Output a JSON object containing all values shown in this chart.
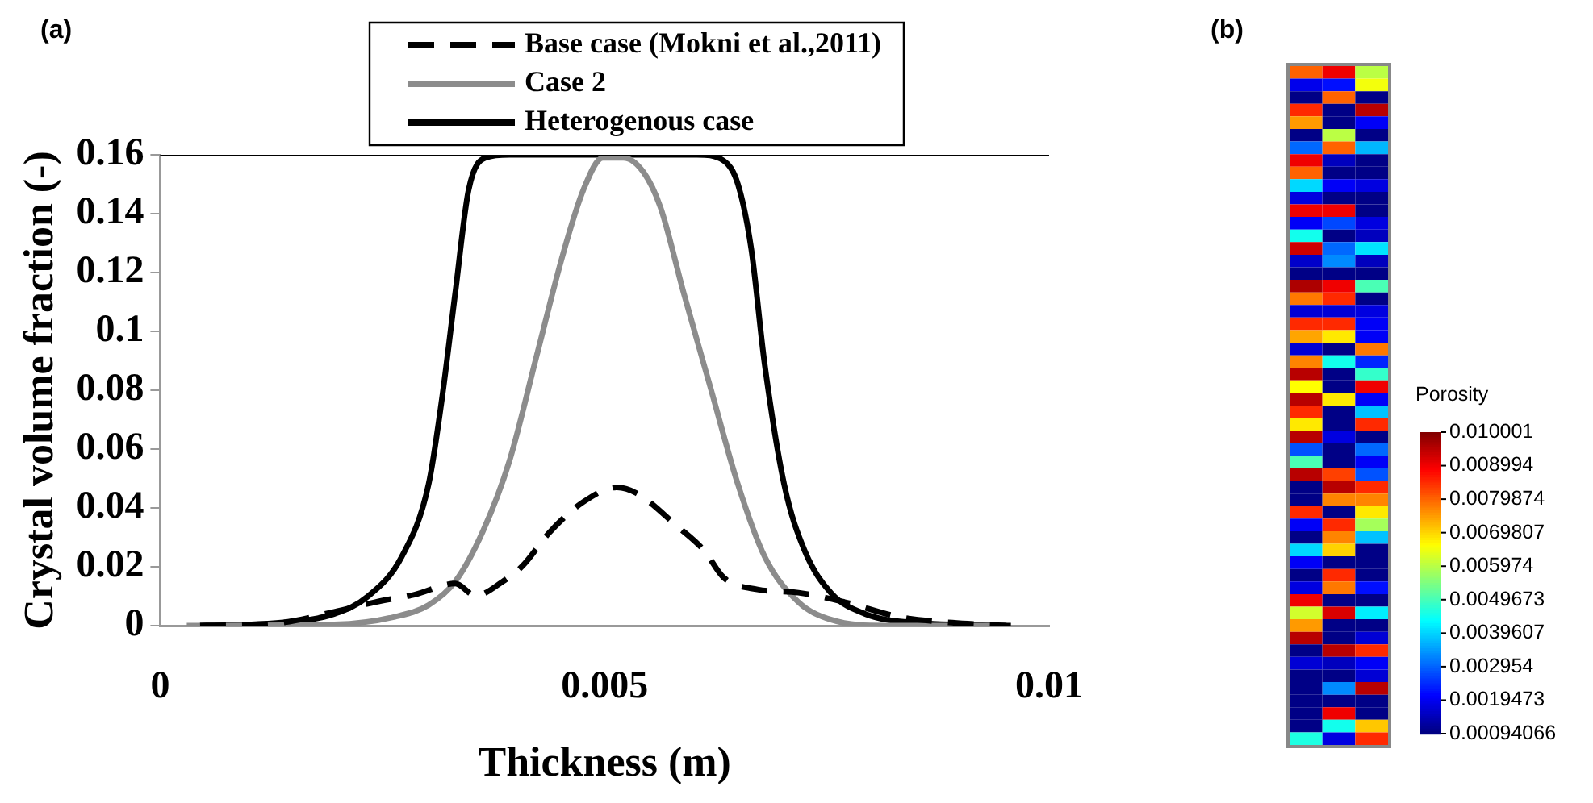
{
  "chart_data": [
    {
      "type": "line",
      "title": "(a)",
      "xlabel": "Thickness (m)",
      "ylabel": "Crystal volume fraction (-)",
      "xlim": [
        0,
        0.01
      ],
      "xticks": [
        0,
        0.005,
        0.01
      ],
      "ylim": [
        0,
        0.16
      ],
      "yticks": [
        0,
        0.02,
        0.04,
        0.06,
        0.08,
        0.1,
        0.12,
        0.14,
        0.16
      ],
      "grid": false,
      "legend": "top",
      "marker": "none",
      "series": [
        {
          "name": "Base case (Mokni et al.,2011)",
          "color": "#000000",
          "line_style": "dashed",
          "x": [
            0.00045,
            0.00136,
            0.00196,
            0.00242,
            0.00287,
            0.00332,
            0.00355,
            0.00385,
            0.00408,
            0.00438,
            0.00476,
            0.00514,
            0.00536,
            0.00582,
            0.00612,
            0.00634,
            0.00672,
            0.00718,
            0.0077,
            0.00831,
            0.00891,
            0.00952
          ],
          "values": [
            0,
            0.001,
            0.0047,
            0.008,
            0.0106,
            0.0143,
            0.0102,
            0.0149,
            0.0204,
            0.0317,
            0.042,
            0.047,
            0.045,
            0.0337,
            0.0255,
            0.0163,
            0.0123,
            0.0112,
            0.008,
            0.003,
            0.001,
            0
          ]
        },
        {
          "name": "Case 2",
          "color": "#8c8c8c",
          "line_style": "solid",
          "x": [
            0.0003,
            0.00196,
            0.00264,
            0.00302,
            0.00332,
            0.00363,
            0.00393,
            0.00423,
            0.00453,
            0.00476,
            0.00498,
            0.00521,
            0.00544,
            0.00563,
            0.00589,
            0.00619,
            0.0065,
            0.0068,
            0.00718,
            0.00755,
            0.00816,
            0.00937
          ],
          "values": [
            0,
            0.0004,
            0.003,
            0.007,
            0.015,
            0.032,
            0.056,
            0.091,
            0.126,
            0.148,
            0.159,
            0.159,
            0.154,
            0.142,
            0.113,
            0.081,
            0.048,
            0.0235,
            0.008,
            0.002,
            0,
            0
          ]
        },
        {
          "name": "Heterogenous case",
          "color": "#000000",
          "line_style": "solid",
          "x": [
            0.00045,
            0.00136,
            0.00196,
            0.00234,
            0.00272,
            0.00302,
            0.00317,
            0.00332,
            0.00347,
            0.00366,
            0.00393,
            0.00604,
            0.00634,
            0.0065,
            0.00665,
            0.0068,
            0.00702,
            0.00725,
            0.00755,
            0.00793,
            0.00846,
            0.00957
          ],
          "values": [
            0,
            0.001,
            0.004,
            0.01,
            0.0235,
            0.048,
            0.077,
            0.113,
            0.148,
            0.159,
            0.16,
            0.16,
            0.158,
            0.15,
            0.128,
            0.089,
            0.048,
            0.0255,
            0.011,
            0.004,
            0.001,
            0
          ]
        }
      ]
    },
    {
      "type": "heatmap",
      "title": "(b)",
      "clabel": "Porosity",
      "categories": [
        null,
        null,
        null
      ],
      "y_categories": [
        null,
        null,
        null,
        null,
        null,
        null,
        null,
        null,
        null,
        null,
        null,
        null,
        null,
        null,
        null,
        null,
        null,
        null,
        null,
        null,
        null,
        null,
        null,
        null,
        null,
        null,
        null,
        null,
        null,
        null,
        null,
        null,
        null,
        null,
        null,
        null,
        null,
        null,
        null,
        null,
        null,
        null,
        null,
        null,
        null,
        null,
        null,
        null,
        null,
        null,
        null,
        null,
        null,
        null
      ],
      "clim": [
        0.00094066,
        0.010001
      ],
      "cticks": [
        0.010001,
        0.008994,
        0.0079874,
        0.0069807,
        0.005974,
        0.0049673,
        0.0039607,
        0.002954,
        0.0019473,
        0.00094066
      ],
      "cells": [
        [
          0.008,
          0.009,
          0.006
        ],
        [
          0.0019,
          0.0022,
          0.0065
        ],
        [
          0.001,
          0.008,
          0.001
        ],
        [
          0.0085,
          0.001,
          0.0095
        ],
        [
          0.0075,
          0.001,
          0.002
        ],
        [
          0.001,
          0.006,
          0.001
        ],
        [
          0.003,
          0.008,
          0.0037
        ],
        [
          0.009,
          0.0015,
          0.001
        ],
        [
          0.008,
          0.001,
          0.001
        ],
        [
          0.004,
          0.002,
          0.0018
        ],
        [
          0.0018,
          0.001,
          0.001
        ],
        [
          0.009,
          0.009,
          0.001
        ],
        [
          0.002,
          0.0027,
          0.0018
        ],
        [
          0.0045,
          0.001,
          0.0015
        ],
        [
          0.0093,
          0.003,
          0.0041
        ],
        [
          0.0016,
          0.0033,
          0.0015
        ],
        [
          0.001,
          0.001,
          0.001
        ],
        [
          0.0096,
          0.009,
          0.005
        ],
        [
          0.0078,
          0.0085,
          0.001
        ],
        [
          0.0017,
          0.0017,
          0.0018
        ],
        [
          0.0085,
          0.0085,
          0.002
        ],
        [
          0.0074,
          0.0068,
          0.002
        ],
        [
          0.0017,
          0.001,
          0.0078
        ],
        [
          0.0077,
          0.0045,
          0.0024
        ],
        [
          0.0095,
          0.001,
          0.0048
        ],
        [
          0.0066,
          0.001,
          0.009
        ],
        [
          0.0095,
          0.0068,
          0.002
        ],
        [
          0.0085,
          0.001,
          0.0038
        ],
        [
          0.0068,
          0.001,
          0.0085
        ],
        [
          0.0095,
          0.0018,
          0.001
        ],
        [
          0.0028,
          0.001,
          0.003
        ],
        [
          0.005,
          0.001,
          0.002
        ],
        [
          0.0095,
          0.0083,
          0.0028
        ],
        [
          0.001,
          0.0095,
          0.0085
        ],
        [
          0.001,
          0.0077,
          0.0077
        ],
        [
          0.0085,
          0.001,
          0.0068
        ],
        [
          0.002,
          0.0085,
          0.0058
        ],
        [
          0.001,
          0.0077,
          0.0038
        ],
        [
          0.004,
          0.007,
          0.001
        ],
        [
          0.002,
          0.001,
          0.001
        ],
        [
          0.001,
          0.0085,
          0.001
        ],
        [
          0.0018,
          0.0078,
          0.0022
        ],
        [
          0.009,
          0.001,
          0.001
        ],
        [
          0.0062,
          0.0092,
          0.0042
        ],
        [
          0.0075,
          0.001,
          0.001
        ],
        [
          0.0095,
          0.001,
          0.0017
        ],
        [
          0.001,
          0.0095,
          0.0085
        ],
        [
          0.0017,
          0.0015,
          0.002
        ],
        [
          0.001,
          0.001,
          0.0017
        ],
        [
          0.001,
          0.0033,
          0.0095
        ],
        [
          0.001,
          0.001,
          0.001
        ],
        [
          0.001,
          0.009,
          0.001
        ],
        [
          0.001,
          0.0045,
          0.0071
        ],
        [
          0.0046,
          0.0018,
          0.0085
        ]
      ]
    }
  ]
}
